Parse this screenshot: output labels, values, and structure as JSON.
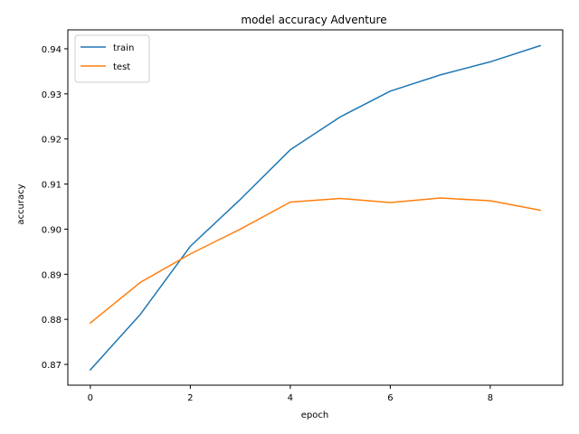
{
  "chart_data": {
    "type": "line",
    "title": "model accuracy Adventure",
    "xlabel": "epoch",
    "ylabel": "accuracy",
    "x": [
      0,
      1,
      2,
      3,
      4,
      5,
      6,
      7,
      8,
      9
    ],
    "xlim": [
      -0.45,
      9.45
    ],
    "ylim": [
      0.8654,
      0.9442
    ],
    "x_ticks": [
      0,
      2,
      4,
      6,
      8
    ],
    "y_ticks": [
      0.87,
      0.88,
      0.89,
      0.9,
      0.91,
      0.92,
      0.93,
      0.94
    ],
    "y_tick_labels": [
      "0.87",
      "0.88",
      "0.89",
      "0.90",
      "0.91",
      "0.92",
      "0.93",
      "0.94"
    ],
    "grid": false,
    "legend_position": "top-left",
    "series": [
      {
        "name": "train",
        "color": "#1f77b4",
        "values": [
          0.8688,
          0.8811,
          0.8962,
          0.9066,
          0.9176,
          0.9249,
          0.9306,
          0.9342,
          0.9371,
          0.9407
        ]
      },
      {
        "name": "test",
        "color": "#ff7f0e",
        "values": [
          0.8792,
          0.8882,
          0.8945,
          0.9,
          0.906,
          0.9068,
          0.9059,
          0.9069,
          0.9063,
          0.9042
        ]
      }
    ]
  }
}
